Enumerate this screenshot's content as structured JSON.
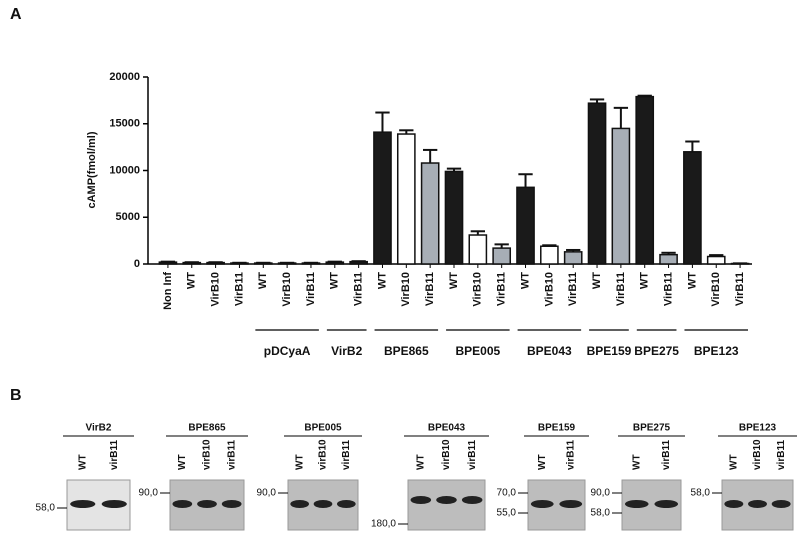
{
  "chart_data": {
    "type": "bar",
    "panel": "A",
    "y_label": "cAMP(fmol/ml)",
    "ylim": [
      0,
      20000
    ],
    "yticks": [
      0,
      5000,
      10000,
      15000,
      20000
    ],
    "groups": [
      {
        "label": null,
        "bars": [
          {
            "category": "Non Inf",
            "value": 200,
            "error": 50,
            "color": "#1a1a1a"
          },
          {
            "category": "WT",
            "value": 150,
            "error": 40,
            "color": "#1a1a1a"
          },
          {
            "category": "VirB10",
            "value": 150,
            "error": 40,
            "color": "#1a1a1a"
          },
          {
            "category": "VirB11",
            "value": 100,
            "error": 30,
            "color": "#1a1a1a"
          }
        ]
      },
      {
        "label": "pDCyaA",
        "bars": [
          {
            "category": "WT",
            "value": 100,
            "error": 30,
            "color": "#1a1a1a"
          },
          {
            "category": "VirB10",
            "value": 100,
            "error": 30,
            "color": "#1a1a1a"
          },
          {
            "category": "VirB11",
            "value": 100,
            "error": 30,
            "color": "#1a1a1a"
          }
        ]
      },
      {
        "label": "VirB2",
        "bars": [
          {
            "category": "WT",
            "value": 200,
            "error": 50,
            "color": "#1a1a1a"
          },
          {
            "category": "VirB11",
            "value": 250,
            "error": 50,
            "color": "#1a1a1a"
          }
        ]
      },
      {
        "label": "BPE865",
        "bars": [
          {
            "category": "WT",
            "value": 14100,
            "error": 2100,
            "color": "#1a1a1a"
          },
          {
            "category": "VirB10",
            "value": 13900,
            "error": 400,
            "color": "#ffffff"
          },
          {
            "category": "VirB11",
            "value": 10800,
            "error": 1400,
            "color": "#a7aeb6"
          }
        ]
      },
      {
        "label": "BPE005",
        "bars": [
          {
            "category": "WT",
            "value": 9900,
            "error": 300,
            "color": "#1a1a1a"
          },
          {
            "category": "VirB10",
            "value": 3100,
            "error": 400,
            "color": "#ffffff"
          },
          {
            "category": "VirB11",
            "value": 1700,
            "error": 400,
            "color": "#a7aeb6"
          }
        ]
      },
      {
        "label": "BPE043",
        "bars": [
          {
            "category": "WT",
            "value": 8200,
            "error": 1400,
            "color": "#1a1a1a"
          },
          {
            "category": "VirB10",
            "value": 1900,
            "error": 100,
            "color": "#ffffff"
          },
          {
            "category": "VirB11",
            "value": 1300,
            "error": 200,
            "color": "#a7aeb6"
          }
        ]
      },
      {
        "label": "BPE159",
        "bars": [
          {
            "category": "WT",
            "value": 17200,
            "error": 400,
            "color": "#1a1a1a"
          },
          {
            "category": "VirB11",
            "value": 14500,
            "error": 2200,
            "color": "#a7aeb6"
          }
        ]
      },
      {
        "label": "BPE275",
        "bars": [
          {
            "category": "WT",
            "value": 17900,
            "error": 100,
            "color": "#1a1a1a"
          },
          {
            "category": "VirB11",
            "value": 1000,
            "error": 200,
            "color": "#a7aeb6"
          }
        ]
      },
      {
        "label": "BPE123",
        "bars": [
          {
            "category": "WT",
            "value": 12000,
            "error": 1100,
            "color": "#1a1a1a"
          },
          {
            "category": "VirB10",
            "value": 800,
            "error": 150,
            "color": "#ffffff"
          },
          {
            "category": "VirB11",
            "value": 50,
            "error": 20,
            "color": "#a7aeb6"
          }
        ]
      }
    ]
  },
  "blots": {
    "panel": "B",
    "items": [
      {
        "title": "VirB2",
        "lanes": [
          "WT",
          "virB11"
        ],
        "markers": [
          "58,0"
        ]
      },
      {
        "title": "BPE865",
        "lanes": [
          "WT",
          "virB10",
          "virB11"
        ],
        "markers": [
          "90,0"
        ]
      },
      {
        "title": "BPE005",
        "lanes": [
          "WT",
          "virB10",
          "virB11"
        ],
        "markers": [
          "90,0"
        ]
      },
      {
        "title": "BPE043",
        "lanes": [
          "WT",
          "virB10",
          "virB11"
        ],
        "markers": [
          "180,0"
        ]
      },
      {
        "title": "BPE159",
        "lanes": [
          "WT",
          "virB11"
        ],
        "markers": [
          "70,0",
          "55,0"
        ]
      },
      {
        "title": "BPE275",
        "lanes": [
          "WT",
          "virB11"
        ],
        "markers": [
          "90,0",
          "58,0"
        ]
      },
      {
        "title": "BPE123",
        "lanes": [
          "WT",
          "virB10",
          "virB11"
        ],
        "markers": [
          "58,0"
        ]
      }
    ]
  }
}
